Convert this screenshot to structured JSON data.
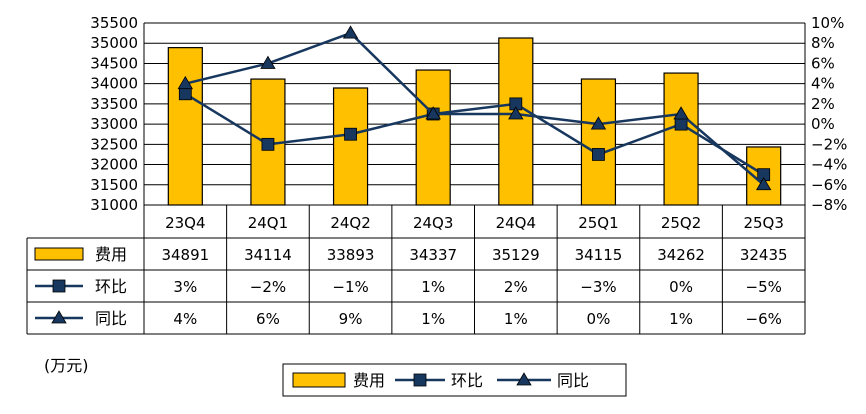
{
  "chart_data": {
    "type": "bar",
    "categories": [
      "23Q4",
      "24Q1",
      "24Q2",
      "24Q3",
      "24Q4",
      "25Q1",
      "25Q2",
      "25Q3"
    ],
    "series": [
      {
        "name": "费用",
        "kind": "bar",
        "axis": "left",
        "values": [
          34891,
          34114,
          33893,
          34337,
          35129,
          34115,
          34262,
          32435
        ],
        "labels": [
          "34891",
          "34114",
          "33893",
          "34337",
          "35129",
          "34115",
          "34262",
          "32435"
        ],
        "color": "#FFC000"
      },
      {
        "name": "环比",
        "kind": "line",
        "marker": "square",
        "axis": "right",
        "values": [
          3,
          -2,
          -1,
          1,
          2,
          -3,
          0,
          -5
        ],
        "labels": [
          "3%",
          "−2%",
          "−1%",
          "1%",
          "2%",
          "−3%",
          "0%",
          "−5%"
        ],
        "color": "#17375E"
      },
      {
        "name": "同比",
        "kind": "line",
        "marker": "triangle",
        "axis": "right",
        "values": [
          4,
          6,
          9,
          1,
          1,
          0,
          1,
          -6
        ],
        "labels": [
          "4%",
          "6%",
          "9%",
          "1%",
          "1%",
          "0%",
          "1%",
          "−6%"
        ],
        "color": "#17375E"
      }
    ],
    "left_axis": {
      "ylim": [
        31000,
        35500
      ],
      "ticks": [
        "31000",
        "31500",
        "32000",
        "32500",
        "33000",
        "33500",
        "34000",
        "34500",
        "35000",
        "35500"
      ]
    },
    "right_axis": {
      "ylim": [
        -8,
        10
      ],
      "ticks": [
        "−8%",
        "−6%",
        "−4%",
        "−2%",
        "0%",
        "2%",
        "4%",
        "6%",
        "8%",
        "10%"
      ]
    },
    "unit_label": "(万元)",
    "grid": true,
    "legend": {
      "position": "bottom",
      "entries": [
        "费用",
        "环比",
        "同比"
      ]
    },
    "data_table": true
  }
}
